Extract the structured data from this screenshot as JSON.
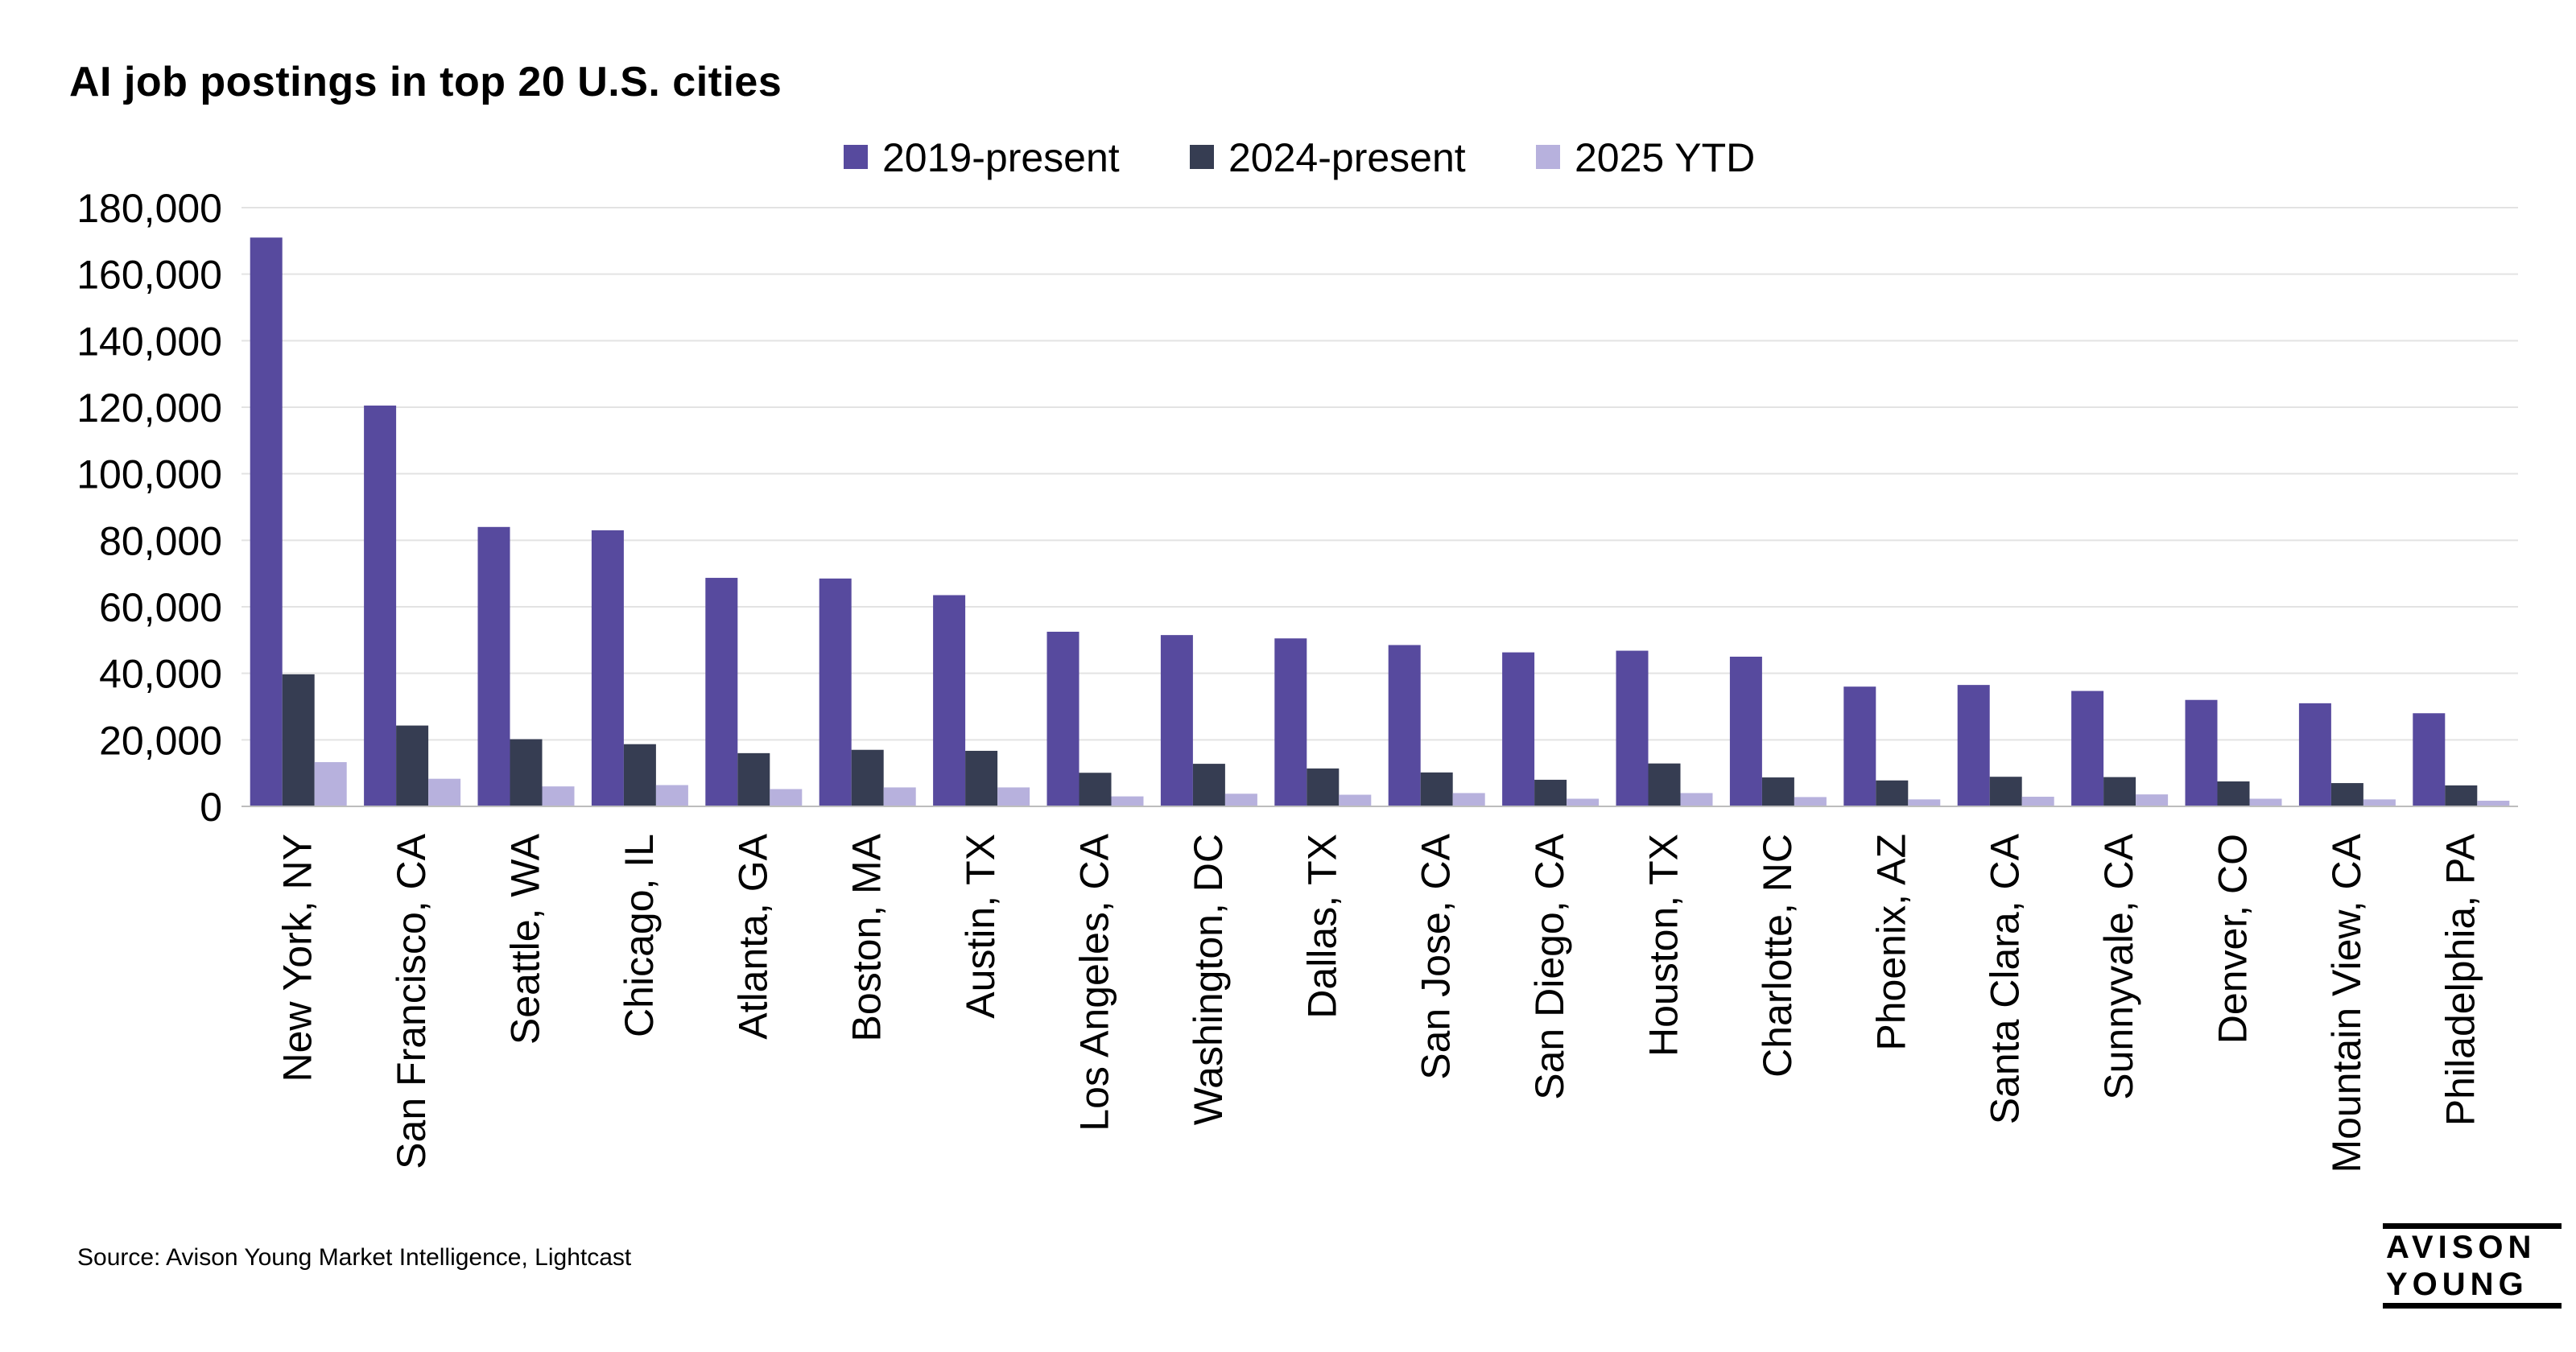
{
  "chart_data": {
    "type": "bar",
    "title": "AI job postings in top 20 U.S. cities",
    "xlabel": "",
    "ylabel": "",
    "ylim": [
      0,
      180000
    ],
    "yticks": [
      "0",
      "20,000",
      "40,000",
      "60,000",
      "80,000",
      "100,000",
      "120,000",
      "140,000",
      "160,000",
      "180,000"
    ],
    "ytick_values": [
      0,
      20000,
      40000,
      60000,
      80000,
      100000,
      120000,
      140000,
      160000,
      180000
    ],
    "grid": true,
    "legend_position": "top-center",
    "categories": [
      "New York, NY",
      "San Francisco, CA",
      "Seattle, WA",
      "Chicago, IL",
      "Atlanta, GA",
      "Boston, MA",
      "Austin, TX",
      "Los Angeles, CA",
      "Washington, DC",
      "Dallas, TX",
      "San Jose, CA",
      "San Diego, CA",
      "Houston, TX",
      "Charlotte, NC",
      "Phoenix, AZ",
      "Santa Clara, CA",
      "Sunnyvale, CA",
      "Denver, CO",
      "Mountain View, CA",
      "Philadelphia, PA"
    ],
    "series": [
      {
        "name": "2019-present",
        "color": "#574a9e",
        "values": [
          171000,
          120500,
          84000,
          83000,
          68700,
          68500,
          63500,
          52500,
          51500,
          50500,
          48500,
          46300,
          46800,
          45000,
          36000,
          36500,
          34700,
          32000,
          31000,
          28000
        ]
      },
      {
        "name": "2024-present",
        "color": "#363d52",
        "values": [
          39700,
          24300,
          20200,
          18700,
          16000,
          17000,
          16700,
          10100,
          12800,
          11400,
          10200,
          8000,
          12900,
          8700,
          7800,
          8900,
          8800,
          7500,
          7000,
          6300
        ]
      },
      {
        "name": "2025 YTD",
        "color": "#b7b1dd",
        "values": [
          13300,
          8300,
          6000,
          6400,
          5200,
          5700,
          5700,
          3000,
          3800,
          3500,
          4000,
          2300,
          4000,
          2800,
          2100,
          2900,
          3600,
          2300,
          2100,
          1700
        ]
      }
    ]
  },
  "footer": {
    "source": "Source: Avison Young Market Intelligence, Lightcast",
    "logo_line1": "AVISON",
    "logo_line2": "YOUNG"
  }
}
